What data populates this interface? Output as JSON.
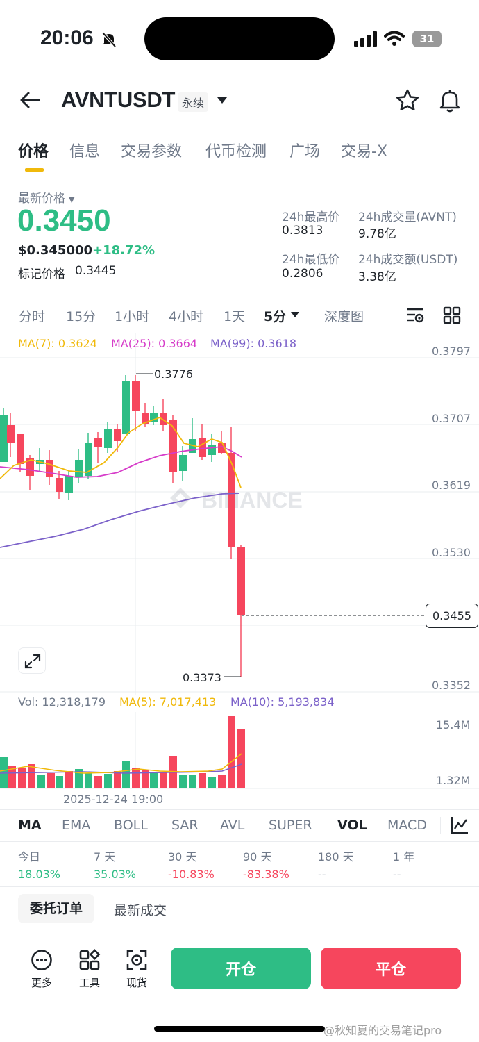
{
  "status_bar": {
    "time": "20:06",
    "battery": "31"
  },
  "header": {
    "title": "AVNTUSDT",
    "badge": "永续"
  },
  "tabs": [
    "价格",
    "信息",
    "交易参数",
    "代币检测",
    "广场",
    "交易-X"
  ],
  "price": {
    "label": "最新价格",
    "last": "0.3450",
    "usd": "$0.345000",
    "change": "+18.72%",
    "mark_label": "标记价格",
    "mark": "0.3445"
  },
  "stats": {
    "high_label": "24h最高价",
    "high": "0.3813",
    "low_label": "24h最低价",
    "low": "0.2806",
    "vol_label": "24h成交量(AVNT)",
    "vol": "9.78亿",
    "turnover_label": "24h成交额(USDT)",
    "turnover": "3.38亿"
  },
  "intervals": [
    "分时",
    "15分",
    "1小时",
    "4小时",
    "1天",
    "5分",
    "深度图"
  ],
  "ma": {
    "ma7": "MA(7): 0.3624",
    "ma25": "MA(25): 0.3664",
    "ma99": "MA(99): 0.3618"
  },
  "price_axis": [
    "0.3797",
    "0.3707",
    "0.3619",
    "0.3530",
    "0.3455",
    "0.3352"
  ],
  "annotations": {
    "high": "0.3776",
    "low": "0.3373",
    "watermark": "BINANCE"
  },
  "volume": {
    "label": "Vol: 12,318,179",
    "ma5": "MA(5): 7,017,413",
    "ma10": "MA(10): 5,193,834",
    "axis_top": "15.4M",
    "axis_bottom": "1.32M",
    "time_label": "2025-12-24 19:00"
  },
  "indicator_tabs": [
    "MA",
    "EMA",
    "BOLL",
    "SAR",
    "AVL",
    "SUPER",
    "VOL",
    "MACD"
  ],
  "performance": [
    {
      "label": "今日",
      "value": "18.03%"
    },
    {
      "label": "7 天",
      "value": "35.03%"
    },
    {
      "label": "30 天",
      "value": "-10.83%"
    },
    {
      "label": "90 天",
      "value": "-83.38%"
    },
    {
      "label": "180 天",
      "value": "--"
    },
    {
      "label": "1 年",
      "value": "--"
    }
  ],
  "order_tabs": [
    "委托订单",
    "最新成交"
  ],
  "footer": {
    "more": "更多",
    "tools": "工具",
    "spot": "现货",
    "open": "开仓",
    "close": "平仓"
  },
  "watermark_text": "@秋知夏的交易笔记pro",
  "colors": {
    "up": "#2ebd85",
    "down": "#f6465d",
    "accent": "#f0b90b",
    "ma7": "#f0b90b",
    "ma25": "#d63cc9",
    "ma99": "#7b61c9"
  }
}
